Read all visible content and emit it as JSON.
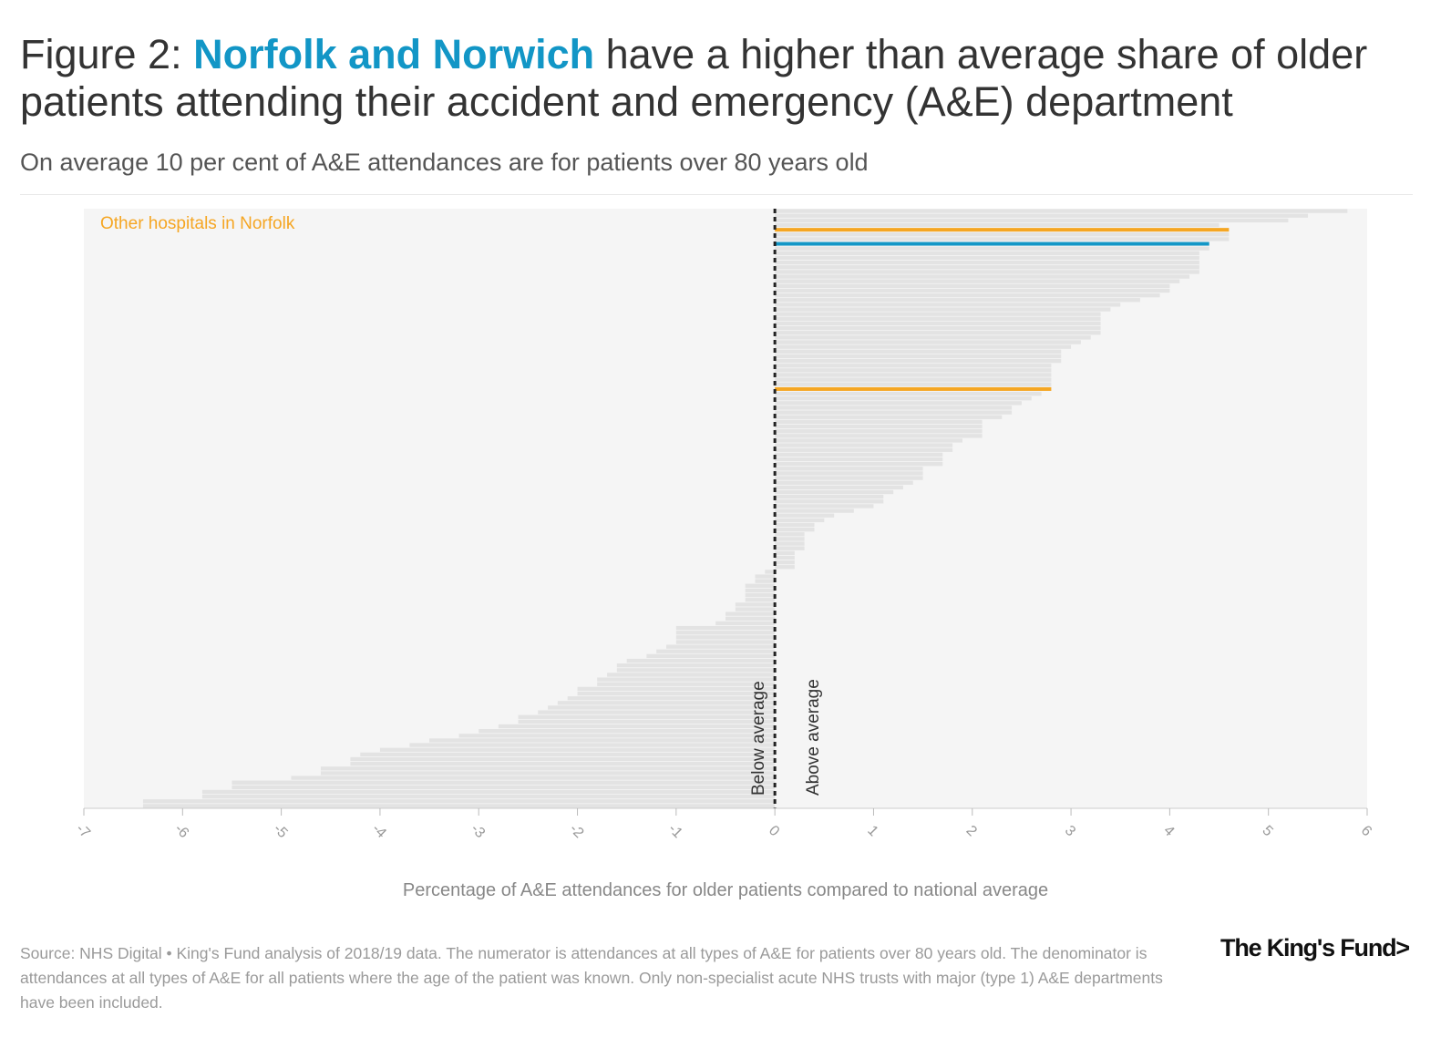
{
  "header": {
    "title_prefix": "Figure 2: ",
    "title_highlight": "Norfolk and Norwich",
    "title_suffix": " have a higher than average share of older patients attending their accident and emergency (A&E) department",
    "subtitle": "On average 10 per cent of A&E attendances are for patients over 80 years old"
  },
  "footer": {
    "source": "Source: NHS Digital • King's Fund analysis of 2018/19 data. The numerator is attendances at all types of A&E for patients over 80 years old. The denominator is attendances at all types of A&E for all patients where the age of the patient was known. Only non-specialist acute NHS trusts with major (type 1) A&E departments have been included.",
    "logo": "The King's Fund>"
  },
  "colors": {
    "highlight": "#1296c6",
    "norfolk": "#f5a623",
    "bars": "#e3e3e3",
    "plot_bg": "#f5f5f5"
  },
  "chart_data": {
    "type": "bar",
    "orientation": "horizontal",
    "xlabel": "Percentage of A&E attendances for older patients compared to national average",
    "xlim": [
      -7,
      6
    ],
    "xticks": [
      -7,
      -6,
      -5,
      -4,
      -3,
      -2,
      -1,
      0,
      1,
      2,
      3,
      4,
      5,
      6
    ],
    "annotations": {
      "other_hospitals": "Other hospitals in Norfolk",
      "below": "Below average",
      "above": "Above average"
    },
    "values": [
      5.8,
      5.4,
      5.2,
      4.5,
      4.6,
      4.6,
      4.6,
      4.4,
      4.4,
      4.3,
      4.3,
      4.3,
      4.3,
      4.3,
      4.2,
      4.1,
      4.0,
      4.0,
      3.9,
      3.7,
      3.5,
      3.4,
      3.3,
      3.3,
      3.3,
      3.3,
      3.3,
      3.2,
      3.1,
      3.0,
      2.9,
      2.9,
      2.9,
      2.8,
      2.8,
      2.8,
      2.8,
      2.8,
      2.8,
      2.7,
      2.6,
      2.5,
      2.4,
      2.4,
      2.3,
      2.1,
      2.1,
      2.1,
      2.1,
      1.9,
      1.8,
      1.8,
      1.7,
      1.7,
      1.7,
      1.5,
      1.5,
      1.5,
      1.4,
      1.3,
      1.2,
      1.1,
      1.1,
      1.0,
      0.8,
      0.6,
      0.5,
      0.4,
      0.4,
      0.3,
      0.3,
      0.3,
      0.3,
      0.2,
      0.2,
      0.2,
      0.2,
      -0.1,
      -0.2,
      -0.2,
      -0.3,
      -0.3,
      -0.3,
      -0.3,
      -0.4,
      -0.4,
      -0.5,
      -0.5,
      -0.6,
      -1.0,
      -1.0,
      -1.0,
      -1.0,
      -1.1,
      -1.2,
      -1.3,
      -1.5,
      -1.6,
      -1.6,
      -1.7,
      -1.8,
      -1.8,
      -2.0,
      -2.0,
      -2.1,
      -2.2,
      -2.3,
      -2.4,
      -2.6,
      -2.6,
      -2.8,
      -3.0,
      -3.2,
      -3.5,
      -3.7,
      -4.0,
      -4.2,
      -4.3,
      -4.3,
      -4.6,
      -4.6,
      -4.9,
      -5.5,
      -5.5,
      -5.8,
      -5.8,
      -6.4,
      -6.4
    ],
    "highlights": [
      {
        "index": 4,
        "group": "Other hospitals in Norfolk",
        "color": "#f5a623"
      },
      {
        "index": 7,
        "group": "Norfolk and Norwich",
        "color": "#1296c6"
      },
      {
        "index": 38,
        "group": "Other hospitals in Norfolk",
        "color": "#f5a623"
      }
    ]
  }
}
